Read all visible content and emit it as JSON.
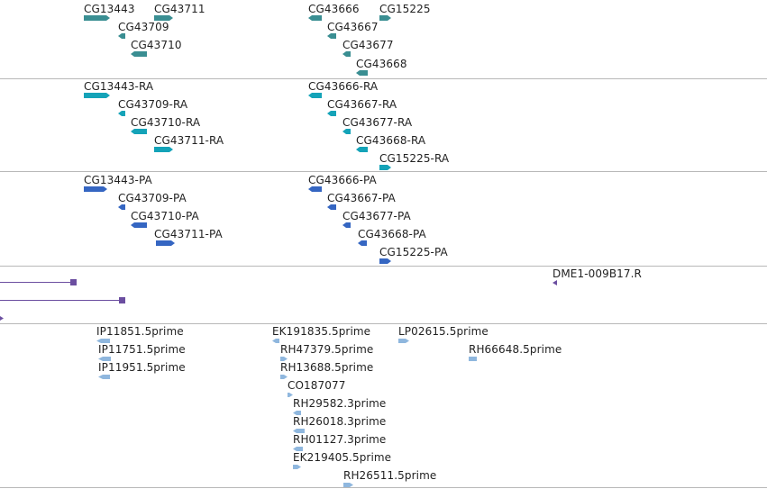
{
  "tracks": {
    "genes": [
      "CG13443",
      "CG43711",
      "CG43709",
      "CG43710",
      "CG43666",
      "CG15225",
      "CG43667",
      "CG43677",
      "CG43668"
    ],
    "transcripts": [
      "CG13443-RA",
      "CG43709-RA",
      "CG43710-RA",
      "CG43711-RA",
      "CG43666-RA",
      "CG43667-RA",
      "CG43677-RA",
      "CG43668-RA",
      "CG15225-RA"
    ],
    "proteins": [
      "CG13443-PA",
      "CG43709-PA",
      "CG43710-PA",
      "CG43711-PA",
      "CG43666-PA",
      "CG43667-PA",
      "CG43677-PA",
      "CG43668-PA",
      "CG15225-PA"
    ],
    "clones": [
      "DME1-009B17.R"
    ],
    "ests": [
      "IP11851.5prime",
      "IP11751.5prime",
      "IP11951.5prime",
      "EK191835.5prime",
      "RH47379.5prime",
      "RH13688.5prime",
      "CO187077",
      "RH29582.3prime",
      "RH26018.3prime",
      "RH01127.3prime",
      "EK219405.5prime",
      "RH26511.5prime",
      "LP02615.5prime",
      "RH66648.5prime"
    ]
  },
  "colors": {
    "gene": "#3a8e92",
    "transcript": "#14a3b8",
    "protein": "#3566c2",
    "clone": "#6b4ea0",
    "est": "#8fb7de"
  }
}
